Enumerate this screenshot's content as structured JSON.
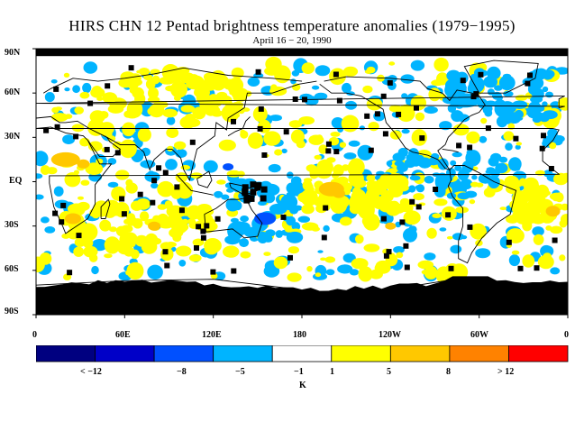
{
  "header": {
    "title": "HIRS CHN 12 Pentad brightness temperature anomalies (1979−1995)",
    "subtitle": "April 16 − 20, 1990"
  },
  "chart_data": {
    "type": "heatmap",
    "title": "HIRS CHN 12 Pentad brightness temperature anomalies (1979−1995)",
    "subtitle": "April 16 − 20, 1990",
    "projection": "global lat-lon map, longitude 0 to 360 (0 at left edge), latitude 90N to 90S",
    "lat_ticks": [
      "90N",
      "60N",
      "30N",
      "EQ",
      "30S",
      "60S",
      "90S"
    ],
    "lon_ticks": [
      "0",
      "60E",
      "120E",
      "180",
      "120W",
      "60W",
      "0"
    ],
    "colorbar": {
      "unit": "K",
      "labels": [
        "< −12",
        "−8",
        "−5",
        "−1",
        "1",
        "5",
        "8",
        "> 12"
      ],
      "bins": [
        {
          "range": "< -12",
          "color": "#000080"
        },
        {
          "range": "-12 to -8",
          "color": "#0000c8"
        },
        {
          "range": "-8 to -5",
          "color": "#0050ff"
        },
        {
          "range": "-5 to -1",
          "color": "#00b4ff"
        },
        {
          "range": "-1 to 1",
          "color": "#ffffff"
        },
        {
          "range": "1 to 5",
          "color": "#ffff00"
        },
        {
          "range": "5 to 8",
          "color": "#ffc800"
        },
        {
          "range": "8 to 12",
          "color": "#ff8200"
        },
        {
          "range": "> 12",
          "color": "#ff0000"
        }
      ]
    },
    "missing_color": "#000000",
    "missing_regions": [
      "north polar cap above ~85N",
      "Antarctica south of ~70S"
    ],
    "features": [
      {
        "anomaly": "warm 5 to 8 K",
        "region": "north Africa / Sahara",
        "lat": "15N",
        "lon": "20E"
      },
      {
        "anomaly": "warm 5 to 8 K",
        "region": "central Pacific south of equator",
        "lat": "5S",
        "lon": "160W"
      },
      {
        "anomaly": "warm 5 to 8 K",
        "region": "southern Africa",
        "lat": "25S",
        "lon": "25E"
      },
      {
        "anomaly": "warm 5 to 8 K",
        "region": "southern Indian Ocean",
        "lat": "30S",
        "lon": "80E"
      },
      {
        "anomaly": "warm 5 to 8 K",
        "region": "South Atlantic",
        "lat": "20S",
        "lon": "10W"
      },
      {
        "anomaly": "cold -8 to -5 K",
        "region": "Coral Sea / east of Australia",
        "lat": "25S",
        "lon": "155E"
      },
      {
        "anomaly": "cold -5 to -1 K",
        "region": "equatorial eastern Pacific",
        "lat": "0",
        "lon": "90W"
      },
      {
        "anomaly": "cold -5 to -1 K",
        "region": "Canada / North Atlantic",
        "lat": "55N",
        "lon": "70W"
      },
      {
        "anomaly": "cold -5 to -1 K",
        "region": "Caribbean",
        "lat": "20N",
        "lon": "75W"
      }
    ]
  },
  "colors": {
    "missing": "#000000",
    "coast": "#000000"
  }
}
